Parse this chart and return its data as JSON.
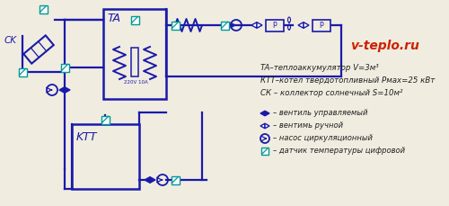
{
  "bg_color": "#f0ece0",
  "line_color": "#1a1aaa",
  "title_color": "#cc2200",
  "title": "v-teplo.ru",
  "legend_lines": [
    "TA–теплоаккумулятор V=3м³",
    "КТТ–котел твердотопливный Pмах=25 кВт",
    "СК – коллектор солнечный S=10м²"
  ],
  "sym_labels": [
    "– вентиль управляемый",
    "– вентимь ручной",
    "– насос циркуляционный",
    "– датчик температуры цифровой"
  ],
  "elec_label": "220V 10A",
  "ta_label": "TA",
  "ktt_label": "KTT",
  "sk_label": "CK"
}
